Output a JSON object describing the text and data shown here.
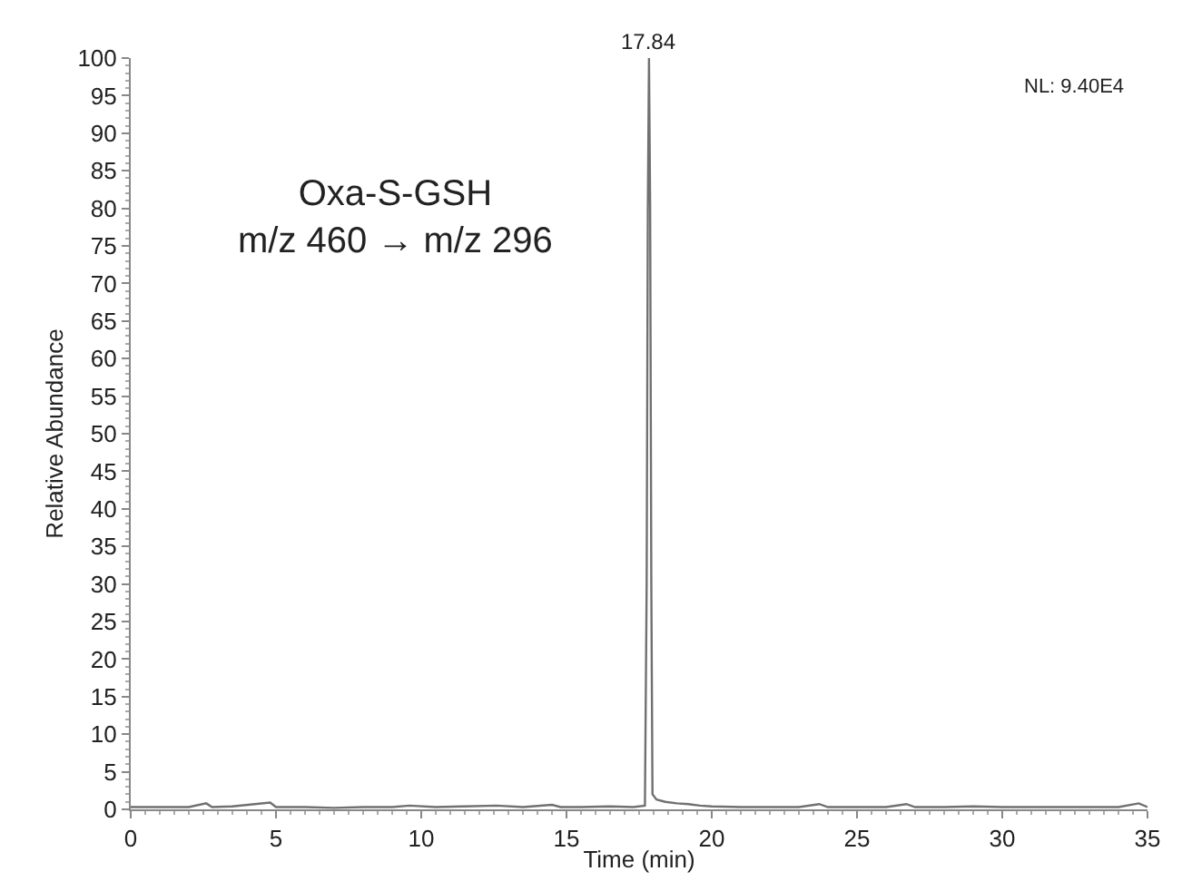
{
  "chart_data": {
    "type": "line",
    "xlabel": "Time (min)",
    "ylabel": "Relative Abundance",
    "x": [
      0,
      1,
      2,
      2.6,
      2.8,
      3.5,
      4.8,
      5.0,
      6,
      7,
      8,
      9,
      9.6,
      10.5,
      11.5,
      12.6,
      13.5,
      14.5,
      14.8,
      15.5,
      16.5,
      17.3,
      17.7,
      17.76,
      17.8,
      17.84,
      17.88,
      17.92,
      17.96,
      18.1,
      18.4,
      18.8,
      19.2,
      19.6,
      20,
      21,
      22,
      23,
      23.7,
      24,
      25,
      26,
      26.7,
      27,
      28,
      29,
      30,
      31,
      32,
      33,
      34,
      34.7,
      35
    ],
    "series": [
      {
        "color": "#707070",
        "values": [
          0.3,
          0.3,
          0.3,
          0.8,
          0.3,
          0.4,
          0.9,
          0.3,
          0.3,
          0.2,
          0.3,
          0.3,
          0.5,
          0.3,
          0.4,
          0.5,
          0.3,
          0.6,
          0.3,
          0.3,
          0.4,
          0.3,
          0.5,
          30,
          80,
          100,
          80,
          30,
          2,
          1.3,
          1.0,
          0.8,
          0.7,
          0.5,
          0.4,
          0.3,
          0.3,
          0.3,
          0.7,
          0.3,
          0.3,
          0.3,
          0.7,
          0.3,
          0.3,
          0.4,
          0.3,
          0.3,
          0.3,
          0.3,
          0.3,
          0.8,
          0.3
        ]
      }
    ],
    "xlim": [
      0,
      35
    ],
    "xticks": [
      0,
      5,
      10,
      15,
      20,
      25,
      30,
      35
    ],
    "ylim": [
      0,
      100
    ],
    "yticks": [
      0,
      5,
      10,
      15,
      20,
      25,
      30,
      35,
      40,
      45,
      50,
      55,
      60,
      65,
      70,
      75,
      80,
      85,
      90,
      95,
      100
    ],
    "marker": "none",
    "line_style": "solid",
    "annotations": [
      {
        "text": "17.84",
        "x": 17.84,
        "y": 100
      },
      "NL: 9.40E4",
      "Oxa-S-GSH\nm/z 460 → m/z 296"
    ]
  }
}
